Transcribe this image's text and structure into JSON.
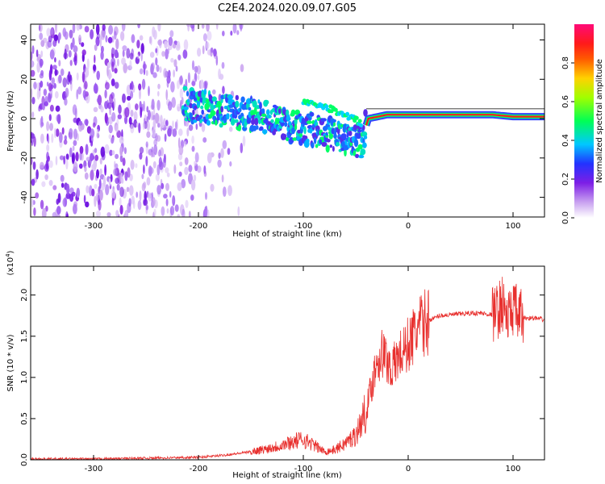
{
  "title": "C2E4.2024.020.09.07.G05",
  "chart_data": [
    {
      "type": "heatmap",
      "xlabel": "Height of straight line (km)",
      "ylabel": "Frequency (Hz)",
      "xlim": [
        -360,
        130
      ],
      "ylim": [
        -50,
        48
      ],
      "x_ticks": [
        -300,
        -200,
        -100,
        0,
        100
      ],
      "y_ticks": [
        -40,
        -20,
        0,
        20,
        40
      ],
      "x_tick_labels": [
        "-300",
        "-200",
        "-100",
        "0",
        "100"
      ],
      "y_tick_labels": [
        "-40",
        "-20",
        "0",
        "20",
        "40"
      ],
      "colorbar": {
        "label": "Normalized spectral amplitude",
        "range": [
          0.0,
          1.0
        ],
        "ticks": [
          0.0,
          0.2,
          0.4,
          0.6,
          0.8
        ],
        "tick_labels": [
          "0.0",
          "0.2",
          "0.4",
          "0.6",
          "0.8"
        ],
        "colormap": "white-violet-blue-cyan-green-yellow-red-magenta"
      },
      "features": {
        "noise_region_x": [
          -360,
          -180
        ],
        "band_center_hz": [
          [
            -215,
            8
          ],
          [
            -200,
            6
          ],
          [
            -170,
            4
          ],
          [
            -150,
            2
          ],
          [
            -130,
            0
          ],
          [
            -110,
            -4
          ],
          [
            -90,
            -6
          ],
          [
            -70,
            -8
          ],
          [
            -55,
            -10
          ],
          [
            -45,
            -12
          ],
          [
            -38,
            0
          ],
          [
            -20,
            2
          ],
          [
            0,
            2
          ],
          [
            40,
            2
          ],
          [
            80,
            2
          ],
          [
            100,
            1
          ],
          [
            130,
            1
          ]
        ],
        "upper_arc_hz": [
          [
            -100,
            8
          ],
          [
            -80,
            6
          ],
          [
            -60,
            2
          ],
          [
            -45,
            -2
          ]
        ],
        "horizontal_line_hz": 3
      }
    },
    {
      "type": "line",
      "xlabel": "Height of straight line (km)",
      "ylabel": "SNR (10 * v/v)",
      "ylabel_multiplier": "(x10",
      "ylabel_multiplier_exp": "4",
      "ylabel_multiplier_close": ")",
      "xlim": [
        -360,
        130
      ],
      "ylim": [
        0.0,
        2.35
      ],
      "x_ticks": [
        -300,
        -200,
        -100,
        0,
        100
      ],
      "y_ticks": [
        0.0,
        0.5,
        1.0,
        1.5,
        2.0
      ],
      "x_tick_labels": [
        "-300",
        "-200",
        "-100",
        "0",
        "100"
      ],
      "y_tick_labels": [
        "0.0",
        "0.5",
        "1.0",
        "1.5",
        "2.0"
      ],
      "series": [
        {
          "color": "#e8302e",
          "x": [
            -360,
            -300,
            -250,
            -200,
            -180,
            -160,
            -140,
            -120,
            -110,
            -100,
            -90,
            -80,
            -70,
            -60,
            -50,
            -45,
            -40,
            -35,
            -30,
            -25,
            -20,
            -15,
            -10,
            -5,
            0,
            5,
            10,
            15,
            20,
            25,
            30,
            40,
            50,
            60,
            70,
            80,
            85,
            90,
            95,
            100,
            105,
            110,
            120,
            130
          ],
          "y": [
            0.01,
            0.01,
            0.02,
            0.03,
            0.05,
            0.08,
            0.12,
            0.18,
            0.22,
            0.25,
            0.18,
            0.1,
            0.12,
            0.2,
            0.3,
            0.45,
            0.6,
            0.9,
            1.2,
            1.3,
            1.2,
            1.1,
            1.25,
            1.3,
            1.4,
            1.5,
            1.6,
            1.65,
            1.7,
            1.72,
            1.75,
            1.76,
            1.77,
            1.78,
            1.78,
            1.76,
            1.8,
            1.9,
            1.7,
            1.85,
            1.75,
            1.72,
            1.72,
            1.7
          ]
        }
      ]
    }
  ]
}
